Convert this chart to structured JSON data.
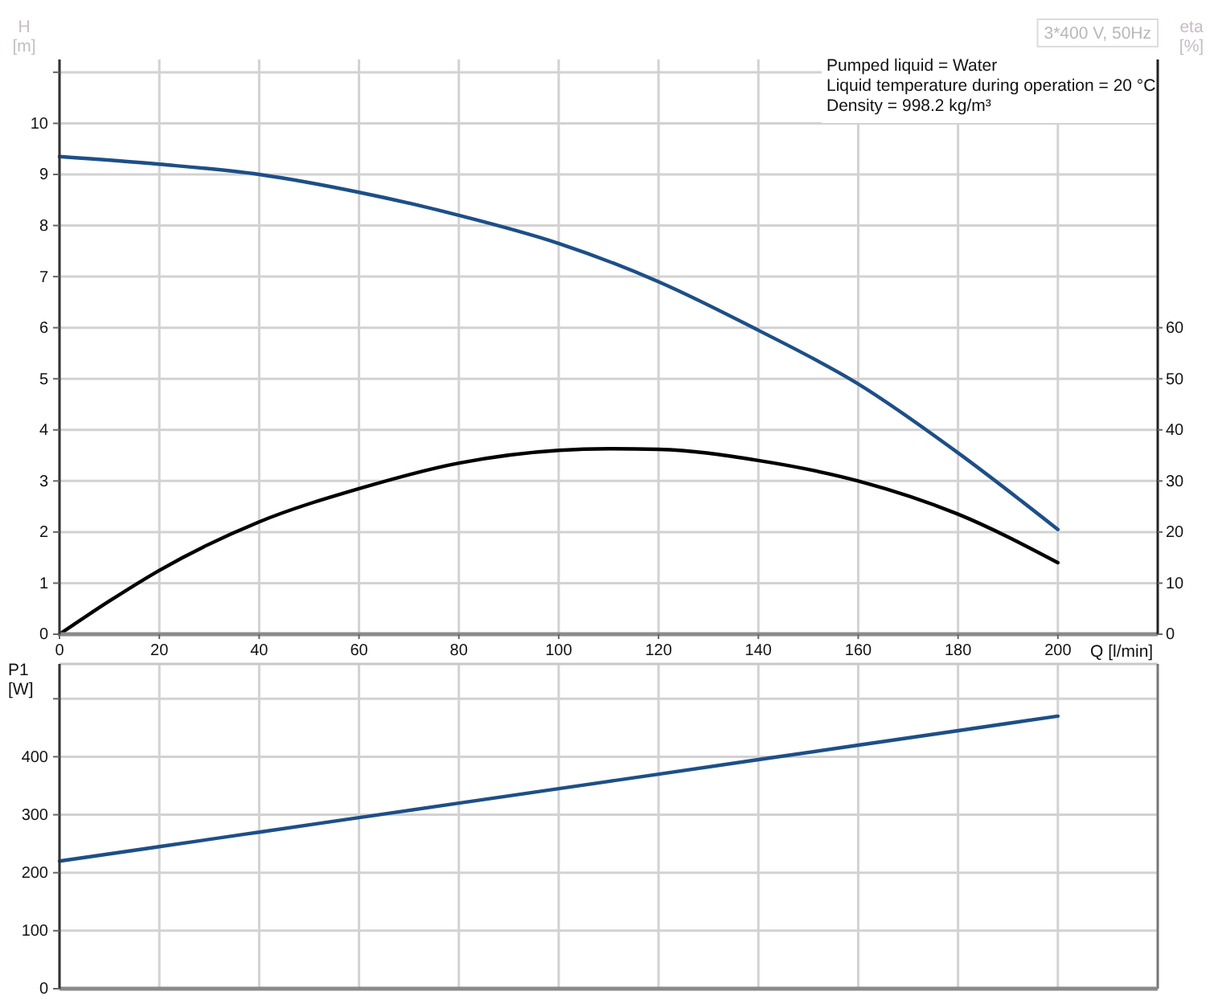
{
  "chart_data": [
    {
      "type": "line",
      "title": "3*400 V, 50Hz",
      "xlabel": "Q [l/min]",
      "ylabel": "H [m]",
      "y2label": "eta [%]",
      "annotations": [
        "Pumped liquid = Water",
        "Liquid temperature during operation = 20 °C",
        "Density = 998.2 kg/m³"
      ],
      "xlim": [
        0,
        220
      ],
      "xticks": [
        0,
        20,
        40,
        60,
        80,
        100,
        120,
        140,
        160,
        180,
        200
      ],
      "ylim": [
        0,
        11.25
      ],
      "yticks": [
        0,
        1,
        2,
        3,
        4,
        5,
        6,
        7,
        8,
        9,
        10,
        {
          "value": 11,
          "label": null
        }
      ],
      "y2lim": [
        0,
        112.5
      ],
      "y2ticks": [
        0,
        10,
        20,
        30,
        40,
        50,
        60
      ],
      "grid": true,
      "series": [
        {
          "color": "#1d4f87",
          "x": [
            0,
            20,
            40,
            60,
            80,
            100,
            120,
            140,
            160,
            180,
            200
          ],
          "values": [
            9.35,
            9.2,
            9.0,
            8.65,
            8.2,
            7.65,
            6.9,
            5.95,
            4.9,
            3.55,
            2.05
          ]
        },
        {
          "color": "#000000",
          "axis": "y2",
          "x": [
            0,
            10,
            20,
            40,
            60,
            80,
            100,
            110,
            120,
            140,
            160,
            180,
            200
          ],
          "values": [
            0,
            6.5,
            12.5,
            22,
            28.5,
            33.5,
            36,
            36.3,
            36.2,
            34,
            30,
            23.5,
            14
          ]
        }
      ]
    },
    {
      "type": "line",
      "ylabel": "P1 [W]",
      "xlim": [
        0,
        220
      ],
      "xticks": [
        0,
        20,
        40,
        60,
        80,
        100,
        120,
        140,
        160,
        180,
        200
      ],
      "ylim": [
        0,
        560
      ],
      "yticks": [
        0,
        100,
        200,
        300,
        400,
        {
          "value": 500,
          "label": null
        }
      ],
      "tick_labels": "y",
      "grid": true,
      "series": [
        {
          "color": "#1d4f87",
          "x": [
            0,
            20,
            40,
            60,
            80,
            100,
            120,
            140,
            160,
            180,
            200
          ],
          "values": [
            220,
            245,
            270,
            295,
            320,
            345,
            370,
            395,
            420,
            445,
            470
          ]
        }
      ]
    }
  ]
}
